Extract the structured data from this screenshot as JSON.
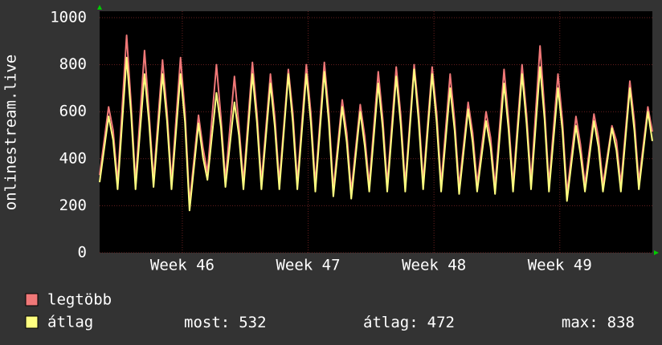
{
  "chart_data": {
    "type": "line",
    "y_label": "onlinestream.live",
    "xlim": [
      0,
      30.75
    ],
    "xticks": [
      {
        "value": 4.6,
        "label": "Week 46"
      },
      {
        "value": 11.6,
        "label": "Week 47"
      },
      {
        "value": 18.6,
        "label": "Week 48"
      },
      {
        "value": 25.6,
        "label": "Week 49"
      }
    ],
    "ylim": [
      0,
      1000
    ],
    "yticks": [
      0,
      200,
      400,
      600,
      800,
      1000
    ],
    "grid": true,
    "x": [
      0,
      0.5,
      0.75,
      1,
      1.5,
      1.75,
      2,
      2.5,
      2.75,
      3,
      3.5,
      3.75,
      4,
      4.5,
      4.75,
      5,
      5.5,
      5.75,
      6,
      6.5,
      6.75,
      7,
      7.5,
      7.75,
      8,
      8.5,
      8.75,
      9,
      9.5,
      9.75,
      10,
      10.5,
      10.75,
      11,
      11.5,
      11.75,
      12,
      12.5,
      12.75,
      13,
      13.5,
      13.75,
      14,
      14.5,
      14.75,
      15,
      15.5,
      15.75,
      16,
      16.5,
      16.75,
      17,
      17.5,
      17.75,
      18,
      18.5,
      18.75,
      19,
      19.5,
      19.75,
      20,
      20.5,
      20.75,
      21,
      21.5,
      21.75,
      22,
      22.5,
      22.75,
      23,
      23.5,
      23.75,
      24,
      24.5,
      24.75,
      25,
      25.5,
      25.75,
      26,
      26.5,
      26.75,
      27,
      27.5,
      27.75,
      28,
      28.5,
      28.75,
      29,
      29.5,
      29.75,
      30,
      30.5,
      30.75
    ],
    "series": [
      {
        "name": "legtöbb",
        "color": "#f07878",
        "values": [
          330,
          620,
          520,
          300,
          925,
          630,
          300,
          860,
          595,
          310,
          820,
          600,
          300,
          830,
          595,
          210,
          585,
          445,
          340,
          800,
          575,
          310,
          750,
          540,
          300,
          810,
          595,
          300,
          760,
          575,
          300,
          780,
          595,
          300,
          800,
          595,
          290,
          810,
          595,
          270,
          650,
          510,
          260,
          630,
          495,
          290,
          770,
          570,
          290,
          790,
          585,
          290,
          800,
          600,
          300,
          790,
          595,
          290,
          760,
          560,
          280,
          640,
          510,
          290,
          600,
          490,
          280,
          780,
          565,
          290,
          800,
          590,
          300,
          880,
          610,
          290,
          760,
          560,
          250,
          580,
          460,
          290,
          590,
          490,
          290,
          540,
          475,
          290,
          730,
          560,
          300,
          620,
          515
        ]
      },
      {
        "name": "átlag",
        "color": "#ffff80",
        "values": [
          300,
          580,
          480,
          270,
          830,
          590,
          270,
          760,
          555,
          280,
          760,
          560,
          270,
          760,
          555,
          180,
          550,
          405,
          310,
          680,
          535,
          280,
          640,
          500,
          270,
          760,
          555,
          270,
          720,
          535,
          270,
          760,
          555,
          270,
          760,
          555,
          260,
          770,
          555,
          240,
          620,
          470,
          230,
          600,
          455,
          260,
          720,
          530,
          260,
          750,
          545,
          260,
          780,
          560,
          270,
          760,
          555,
          260,
          700,
          520,
          250,
          610,
          470,
          260,
          560,
          450,
          250,
          720,
          525,
          260,
          760,
          550,
          270,
          790,
          570,
          260,
          700,
          520,
          220,
          540,
          420,
          260,
          560,
          450,
          260,
          530,
          435,
          260,
          700,
          520,
          270,
          600,
          475
        ]
      }
    ],
    "stats": [
      {
        "label": "most:",
        "value": 532
      },
      {
        "label": "átlag:",
        "value": 472
      },
      {
        "label": "max:",
        "value": 838
      }
    ]
  }
}
